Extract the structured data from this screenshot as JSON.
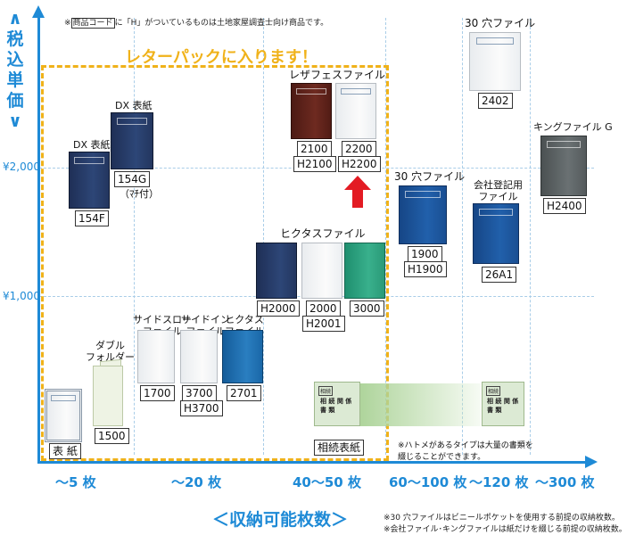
{
  "note_top": {
    "prefix": "※",
    "boxed": "商品コード",
    "suffix": "に「H」がついているものは土地家屋調査士向け商品です。"
  },
  "y_axis": {
    "label": "＜税込単価＞",
    "label_chars": [
      "∧",
      "税",
      "込",
      "単",
      "価",
      "∨"
    ],
    "ticks": [
      "¥2,000",
      "¥1,000"
    ]
  },
  "x_axis": {
    "title": "＜収納可能枚数＞",
    "categories": [
      "〜5 枚",
      "〜20 枚",
      "40〜50 枚",
      "60〜100 枚",
      "〜120 枚",
      "〜300 枚"
    ]
  },
  "letterpack": {
    "label": "レターパックに入ります！",
    "color": "#f0b21a"
  },
  "axis_color": "#1e8ad6",
  "products": {
    "hyoshi": {
      "code": "表 紙"
    },
    "double": {
      "caption": "ダブル\nフォルダー",
      "code": "1500"
    },
    "side_slow": {
      "caption": "サイドスロー\nファイル",
      "code": "1700"
    },
    "side_in": {
      "caption": "サイドイン\nファイル",
      "codes": [
        "3700",
        "H3700"
      ]
    },
    "hiktas_small": {
      "caption": "ヒクタス\nファイル",
      "code": "2701"
    },
    "dx": {
      "caption": "DX 表紙",
      "code": "154F"
    },
    "dx_file": {
      "caption": "DX 表紙",
      "code": "154G",
      "note": "（ﾏﾁ付）"
    },
    "lezafes": {
      "caption": "レザフェスファイル",
      "codes_a": [
        "2100",
        "H2100"
      ],
      "codes_b": [
        "2200",
        "H2200"
      ]
    },
    "hiktas": {
      "caption": "ヒクタスファイル",
      "code_a": "H2000",
      "codes_b": [
        "2000",
        "H2001"
      ],
      "code_c": "3000"
    },
    "sozoku": {
      "code": "相続表紙"
    },
    "f30": {
      "caption": "30 穴ファイル",
      "codes": [
        "1900",
        "H1900"
      ]
    },
    "kaisha": {
      "caption": "会社登記用\nファイル",
      "code": "26A1"
    },
    "f30b": {
      "caption": "30 穴ファイル",
      "code": "2402"
    },
    "king": {
      "caption": "キングファイル G",
      "code": "H2400"
    }
  },
  "hatome_note": "※ハトメがあるタイプは大量の書類を\n綴じることができます。",
  "footnotes": [
    "※30 穴ファイルはビニールポケットを使用する前提の収納枚数。",
    "※会社ファイル･キングファイルは紙だけを綴じる前提の収納枚数。"
  ],
  "cover_texts": {
    "souzoku": "相続",
    "souzoku_sub": "相 続 関 係 書 類"
  }
}
